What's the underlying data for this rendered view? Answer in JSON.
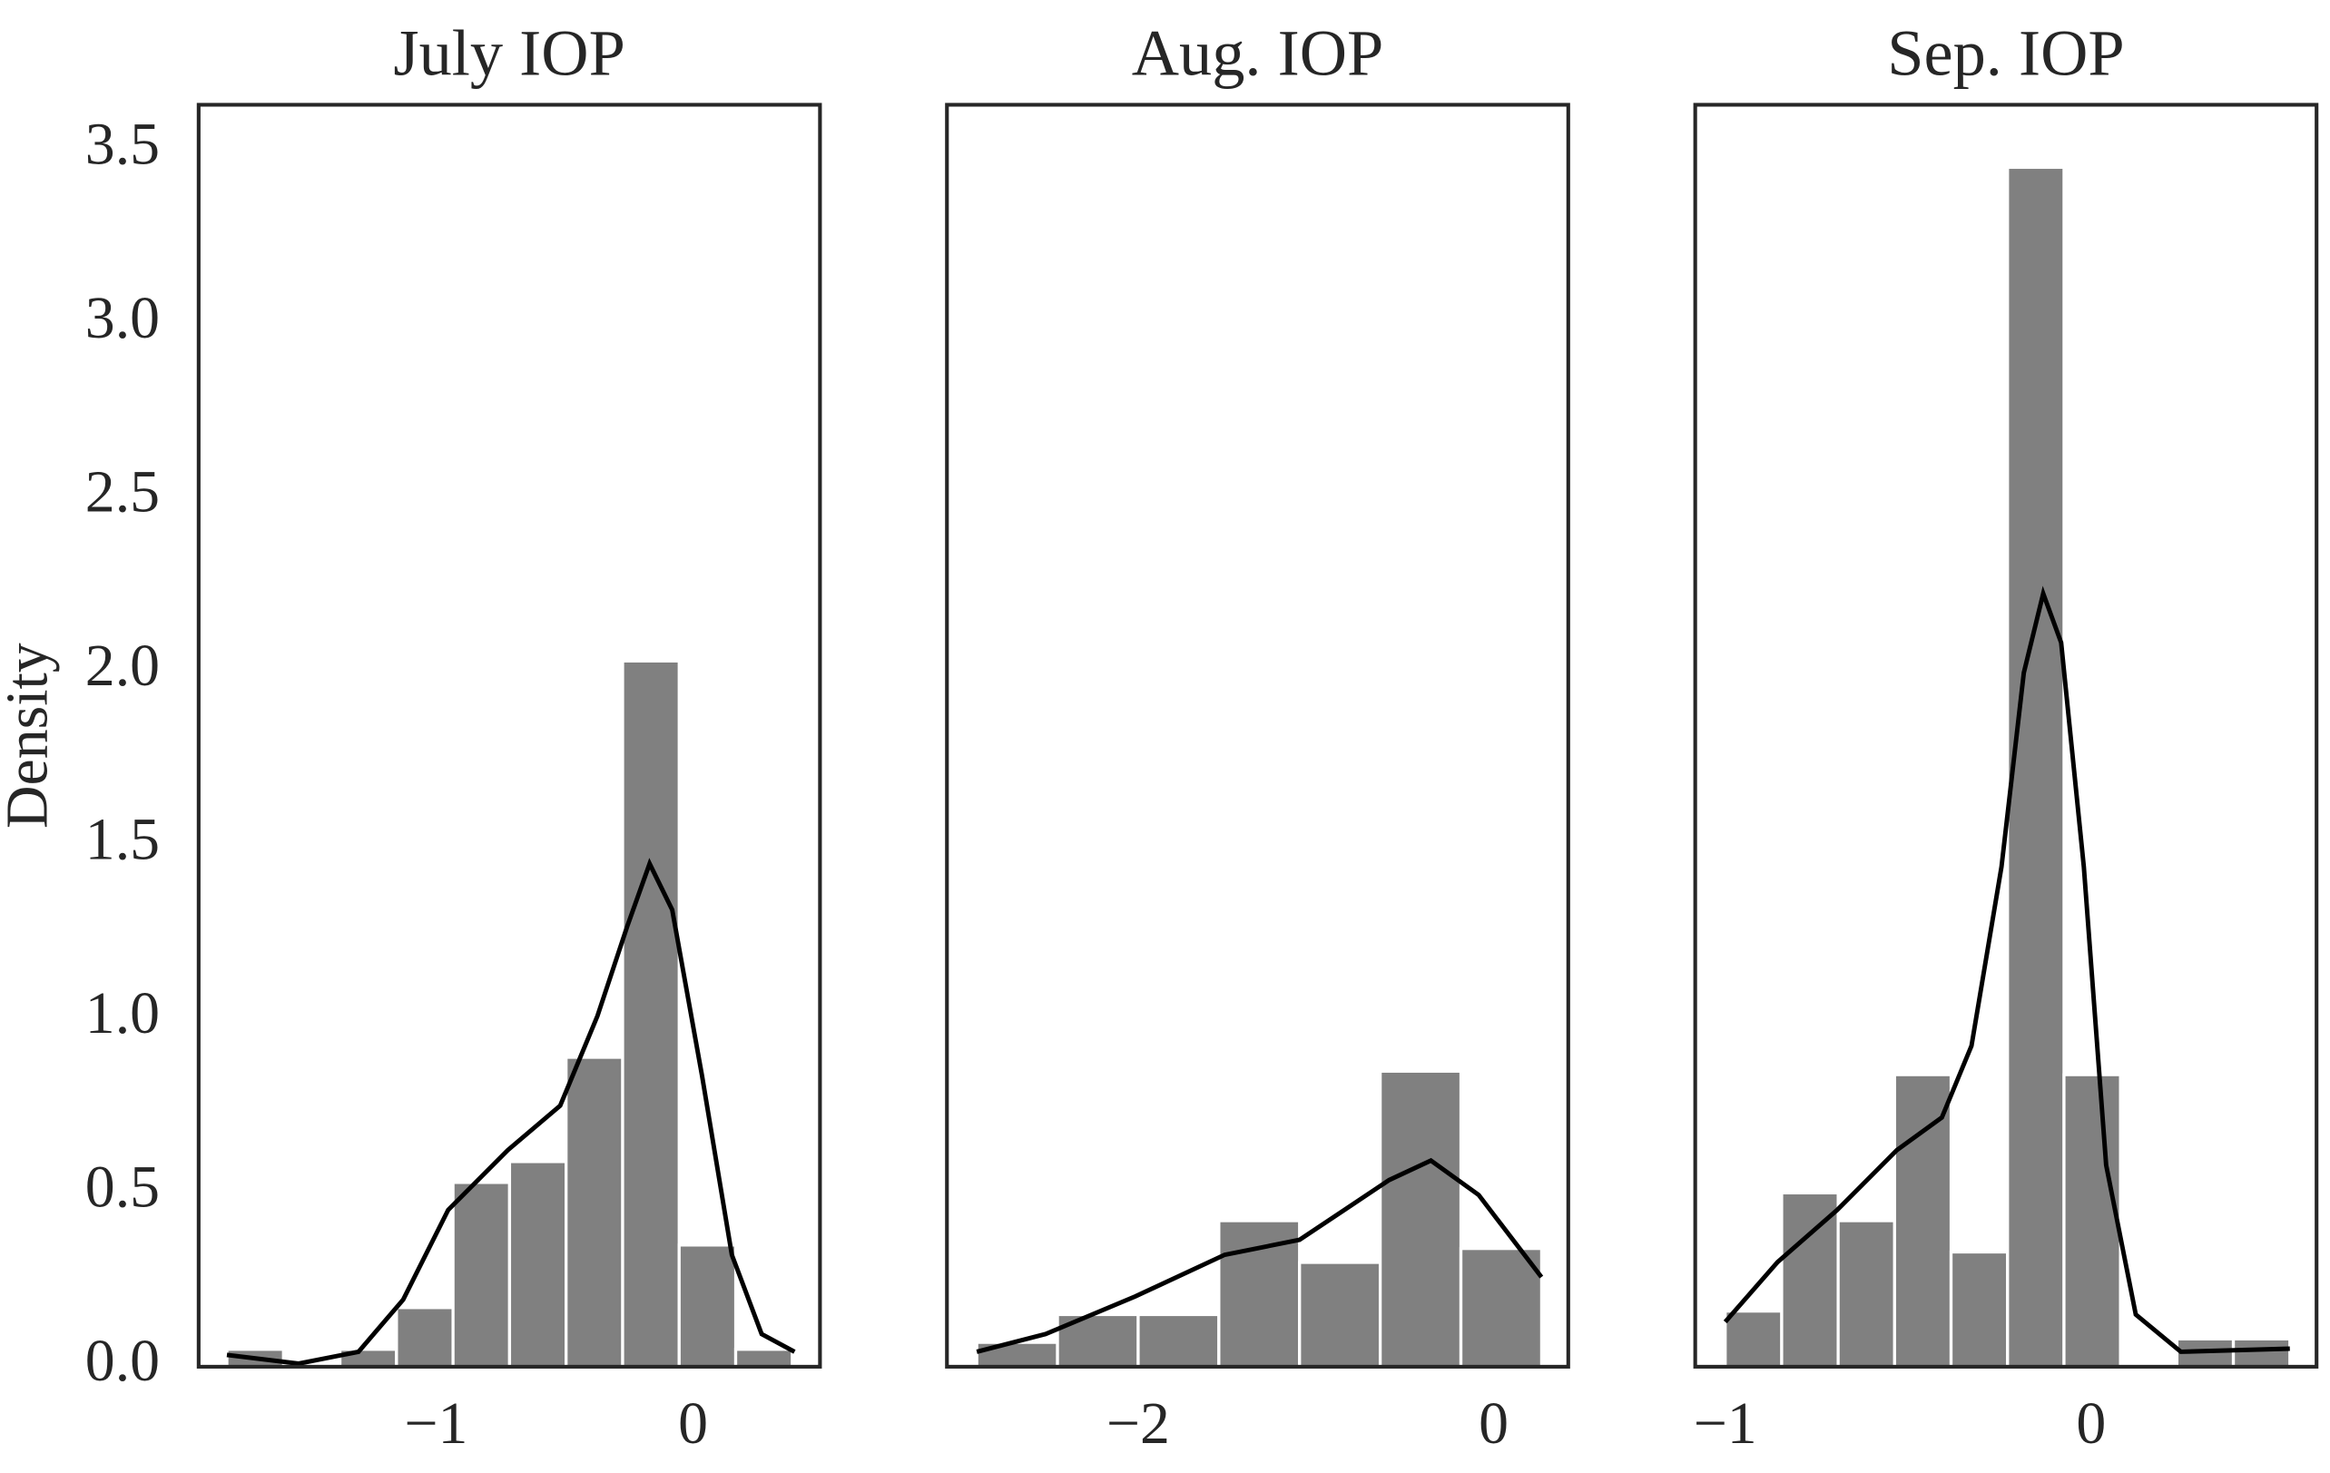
{
  "chart_data": [
    {
      "type": "histogram",
      "title": "July IOP",
      "ylabel": "Density",
      "bins": [
        -1.814,
        -1.594,
        -1.374,
        -1.154,
        -0.934,
        -0.714,
        -0.494,
        -0.274,
        -0.054,
        0.166,
        0.386
      ],
      "values": [
        0.05,
        0,
        0.05,
        0.17,
        0.53,
        0.59,
        0.89,
        2.03,
        0.35,
        0.05
      ],
      "color": "#808080",
      "kde": {
        "color": "#000000",
        "x": [
          -1.814,
          -1.535,
          -1.302,
          -1.128,
          -0.953,
          -0.721,
          -0.517,
          -0.372,
          -0.256,
          -0.169,
          -0.081,
          0.035,
          0.151,
          0.267,
          0.395
        ],
        "y": [
          0.034,
          0.009,
          0.043,
          0.193,
          0.451,
          0.623,
          0.751,
          1.009,
          1.267,
          1.447,
          1.314,
          0.837,
          0.322,
          0.094,
          0.043
        ]
      },
      "xlim": [
        -1.924,
        0.494
      ],
      "ylim": [
        0,
        3.63
      ],
      "xticks": [
        {
          "value": -1,
          "label": "−1"
        },
        0
      ],
      "yticks": [
        {
          "value": 0,
          "label": "0.0"
        },
        0.5,
        {
          "value": 1,
          "label": "1.0"
        },
        1.5,
        {
          "value": 2,
          "label": "2.0"
        },
        2.5,
        {
          "value": 3,
          "label": "3.0"
        },
        3.5
      ],
      "grid": false
    },
    {
      "type": "histogram",
      "title": "Aug. IOP",
      "bins": [
        -2.908,
        -2.454,
        -2.0,
        -1.546,
        -1.092,
        -0.638,
        -0.184,
        0.27
      ],
      "values": [
        0.07,
        0.15,
        0.15,
        0.42,
        0.3,
        0.85,
        0.34
      ],
      "color": "#808080",
      "kde": {
        "color": "#000000",
        "x": [
          -2.908,
          -2.521,
          -2.017,
          -1.513,
          -1.092,
          -0.84,
          -0.588,
          -0.353,
          -0.084,
          0.269
        ],
        "y": [
          0.043,
          0.094,
          0.202,
          0.322,
          0.365,
          0.451,
          0.537,
          0.593,
          0.494,
          0.258
        ]
      },
      "xlim": [
        -3.076,
        0.42
      ],
      "ylim": [
        0,
        3.63
      ],
      "xticks": [
        {
          "value": -2,
          "label": "−2"
        },
        0
      ],
      "grid": false
    },
    {
      "type": "histogram",
      "title": "Sep. IOP",
      "bins": [
        -1.0,
        -0.8457,
        -0.6914,
        -0.5371,
        -0.3828,
        -0.2285,
        -0.0742,
        0.0801,
        0.2344,
        0.3887,
        0.543
      ],
      "values": [
        0.16,
        0.5,
        0.42,
        0.84,
        0.33,
        3.45,
        0.84,
        0,
        0.08,
        0.08
      ],
      "color": "#808080",
      "kde": {
        "color": "#000000",
        "x": [
          -1.0,
          -0.857,
          -0.694,
          -0.531,
          -0.408,
          -0.327,
          -0.245,
          -0.184,
          -0.131,
          -0.082,
          -0.02,
          0.041,
          0.122,
          0.245,
          0.543
        ],
        "y": [
          0.129,
          0.301,
          0.451,
          0.623,
          0.717,
          0.923,
          1.438,
          1.996,
          2.224,
          2.083,
          1.438,
          0.58,
          0.15,
          0.043,
          0.052
        ]
      },
      "xlim": [
        -1.082,
        0.616
      ],
      "ylim": [
        0,
        3.63
      ],
      "xticks": [
        {
          "value": -1,
          "label": "−1"
        },
        0
      ],
      "grid": false
    }
  ]
}
